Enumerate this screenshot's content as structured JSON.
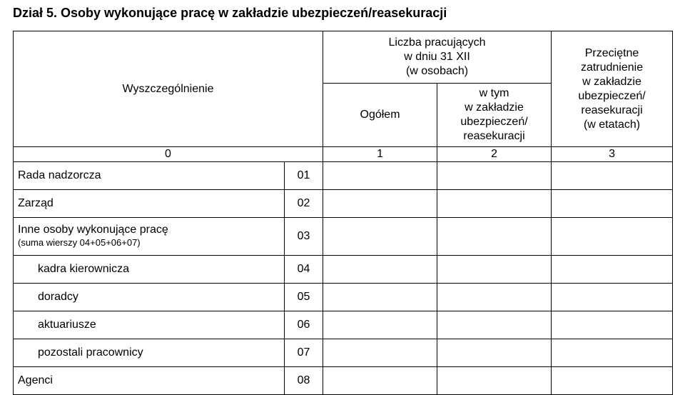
{
  "title": "Dział 5. Osoby wykonujące pracę w zakładzie ubezpieczeń/reasekuracji",
  "header": {
    "wyszczegolnienie": "Wyszczególnienie",
    "liczba_line1": "Liczba pracujących",
    "liczba_line2": "w dniu 31 XII",
    "liczba_line3": "(w osobach)",
    "ogolem": "Ogółem",
    "wtym_line1": "w tym",
    "wtym_line2": "w zakładzie",
    "wtym_line3": "ubezpieczeń/",
    "wtym_line4": "reasekuracji",
    "przec_line1": "Przeciętne",
    "przec_line2": "zatrudnienie",
    "przec_line3": "w zakładzie",
    "przec_line4": "ubezpieczeń/",
    "przec_line5": "reasekuracji",
    "przec_line6": "(w etatach)",
    "idx0": "0",
    "idx1": "1",
    "idx2": "2",
    "idx3": "3"
  },
  "rows": {
    "r1": {
      "label": "Rada nadzorcza",
      "num": "01"
    },
    "r2": {
      "label": "Zarząd",
      "num": "02"
    },
    "r3": {
      "label": "Inne osoby wykonujące pracę",
      "note": "(suma wierszy 04+05+06+07)",
      "num": "03"
    },
    "r4": {
      "label": "kadra kierownicza",
      "num": "04"
    },
    "r5": {
      "label": "doradcy",
      "num": "05"
    },
    "r6": {
      "label": "aktuariusze",
      "num": "06"
    },
    "r7": {
      "label": "pozostali pracownicy",
      "num": "07"
    },
    "r8": {
      "label": "Agenci",
      "num": "08"
    }
  }
}
